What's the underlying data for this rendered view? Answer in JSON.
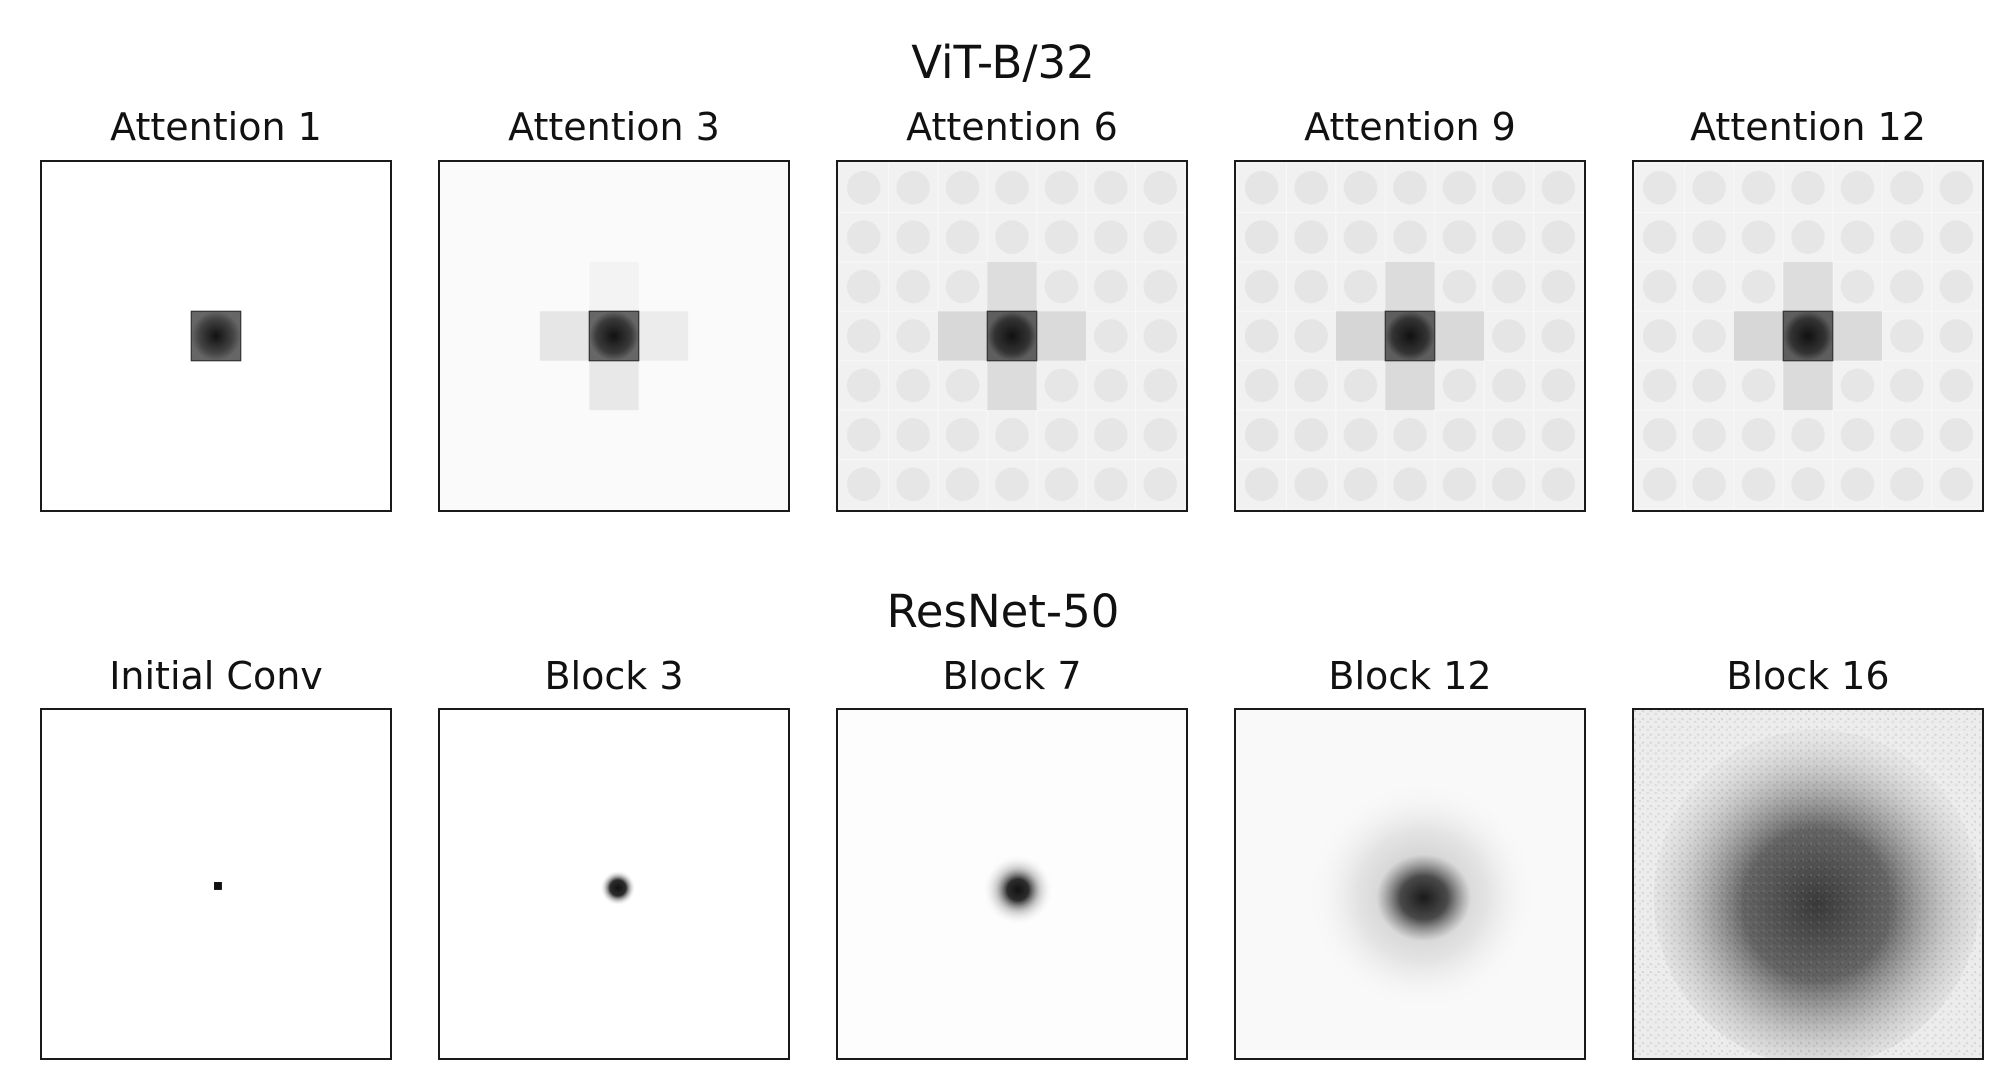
{
  "figure": {
    "rows": [
      {
        "title": "ViT-B/32",
        "panels": [
          {
            "label": "Attention 1"
          },
          {
            "label": "Attention 3"
          },
          {
            "label": "Attention 6"
          },
          {
            "label": "Attention 9"
          },
          {
            "label": "Attention 12"
          }
        ]
      },
      {
        "title": "ResNet-50",
        "panels": [
          {
            "label": "Initial Conv"
          },
          {
            "label": "Block 3"
          },
          {
            "label": "Block 7"
          },
          {
            "label": "Block 12"
          },
          {
            "label": "Block 16"
          }
        ]
      }
    ],
    "colors": {
      "background": "#ffffff",
      "map_dark": "#111111",
      "frame": "#1a1a1a"
    }
  }
}
